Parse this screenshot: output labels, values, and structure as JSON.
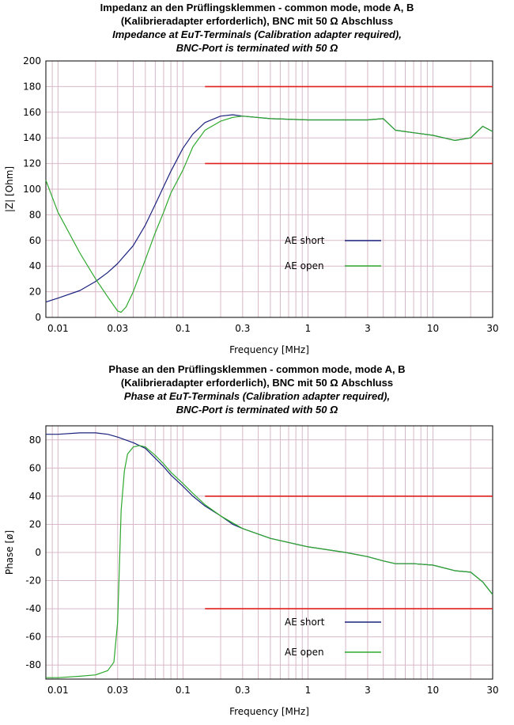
{
  "chart_data": [
    {
      "type": "line",
      "title": "Impedanz an den Prüflingsklemmen - common mode, mode A, B",
      "subtitle": "(Kalibrieradapter erforderlich), BNC mit 50 Ω Abschluss",
      "title_en": "Impedance at EuT-Terminals (Calibration adapter required),",
      "subtitle_en": "BNC-Port is terminated with 50 Ω",
      "xlabel": "Frequency [MHz]",
      "ylabel": "|Z| [Ohm]",
      "xscale": "log",
      "xlim": [
        0.008,
        30
      ],
      "ylim": [
        0,
        200
      ],
      "xticks": [
        0.01,
        0.03,
        0.1,
        0.3,
        1,
        3,
        10,
        30
      ],
      "xtick_labels": [
        "0.01",
        "0.03",
        "0.1",
        "0.3",
        "1",
        "3",
        "10",
        "30"
      ],
      "yticks": [
        0,
        20,
        40,
        60,
        80,
        100,
        120,
        140,
        160,
        180,
        200
      ],
      "ytick_labels": [
        "0",
        "20",
        "40",
        "60",
        "80",
        "100",
        "120",
        "140",
        "160",
        "180",
        "200"
      ],
      "grid": true,
      "legend_position": "center-right",
      "limit_lines": [
        {
          "color": "#e0201e",
          "x": [
            0.15,
            30
          ],
          "y": [
            180,
            180
          ]
        },
        {
          "color": "#e0201e",
          "x": [
            0.15,
            30
          ],
          "y": [
            120,
            120
          ]
        }
      ],
      "series": [
        {
          "name": "AE short",
          "color": "#1a237e",
          "x": [
            0.008,
            0.01,
            0.015,
            0.02,
            0.025,
            0.03,
            0.04,
            0.05,
            0.06,
            0.07,
            0.08,
            0.1,
            0.12,
            0.15,
            0.2,
            0.25,
            0.3,
            0.5,
            1,
            2,
            3,
            4,
            5,
            7,
            10,
            15,
            20,
            25,
            30
          ],
          "y": [
            12,
            15,
            21,
            28,
            35,
            42,
            56,
            72,
            88,
            102,
            114,
            132,
            143,
            152,
            157,
            158,
            157,
            155,
            154,
            154,
            154,
            155,
            146,
            144,
            142,
            138,
            140,
            149,
            145
          ]
        },
        {
          "name": "AE open",
          "color": "#2ea82e",
          "x": [
            0.008,
            0.01,
            0.015,
            0.02,
            0.025,
            0.03,
            0.032,
            0.035,
            0.04,
            0.05,
            0.06,
            0.07,
            0.08,
            0.1,
            0.12,
            0.15,
            0.2,
            0.25,
            0.3,
            0.5,
            1,
            2,
            3,
            4,
            5,
            7,
            10,
            15,
            20,
            25,
            30
          ],
          "y": [
            107,
            82,
            50,
            30,
            16,
            5,
            4,
            8,
            20,
            45,
            66,
            82,
            97,
            115,
            133,
            146,
            153,
            156,
            157,
            155,
            154,
            154,
            154,
            155,
            146,
            144,
            142,
            138,
            140,
            149,
            145
          ]
        }
      ]
    },
    {
      "type": "line",
      "title": "Phase an den Prüflingsklemmen - common mode, mode A, B",
      "subtitle": "(Kalibrieradapter erforderlich), BNC mit 50 Ω Abschluss",
      "title_en": "Phase at EuT-Terminals (Calibration adapter required),",
      "subtitle_en": "BNC-Port is terminated with 50 Ω",
      "xlabel": "Frequency [MHz]",
      "ylabel": "Phase [ø]",
      "xscale": "log",
      "xlim": [
        0.008,
        30
      ],
      "ylim": [
        -90,
        90
      ],
      "xticks": [
        0.01,
        0.03,
        0.1,
        0.3,
        1,
        3,
        10,
        30
      ],
      "xtick_labels": [
        "0.01",
        "0.03",
        "0.1",
        "0.3",
        "1",
        "3",
        "10",
        "30"
      ],
      "yticks": [
        -80,
        -60,
        -40,
        -20,
        0,
        20,
        40,
        60,
        80
      ],
      "ytick_labels": [
        "-80",
        "-60",
        "-40",
        "-20",
        "0",
        "20",
        "40",
        "60",
        "80"
      ],
      "grid": true,
      "legend_position": "bottom-right",
      "limit_lines": [
        {
          "color": "#e0201e",
          "x": [
            0.15,
            30
          ],
          "y": [
            40,
            40
          ]
        },
        {
          "color": "#e0201e",
          "x": [
            0.15,
            30
          ],
          "y": [
            -40,
            -40
          ]
        }
      ],
      "series": [
        {
          "name": "AE short",
          "color": "#1a237e",
          "x": [
            0.008,
            0.01,
            0.015,
            0.02,
            0.025,
            0.03,
            0.04,
            0.05,
            0.06,
            0.07,
            0.08,
            0.1,
            0.12,
            0.15,
            0.2,
            0.25,
            0.3,
            0.5,
            1,
            2,
            3,
            4,
            5,
            7,
            10,
            15,
            20,
            25,
            30
          ],
          "y": [
            84,
            84,
            85,
            85,
            84,
            82,
            78,
            74,
            67,
            61,
            55,
            47,
            40,
            33,
            26,
            20,
            17,
            10,
            4,
            0,
            -3,
            -6,
            -8,
            -8,
            -9,
            -13,
            -14,
            -21,
            -30
          ]
        },
        {
          "name": "AE open",
          "color": "#2ea82e",
          "x": [
            0.008,
            0.01,
            0.015,
            0.02,
            0.025,
            0.028,
            0.03,
            0.031,
            0.032,
            0.034,
            0.036,
            0.04,
            0.045,
            0.05,
            0.06,
            0.07,
            0.08,
            0.1,
            0.12,
            0.15,
            0.2,
            0.25,
            0.3,
            0.5,
            1,
            2,
            3,
            4,
            5,
            7,
            10,
            15,
            20,
            25,
            30
          ],
          "y": [
            -89,
            -89,
            -88,
            -87,
            -84,
            -78,
            -50,
            -10,
            30,
            58,
            70,
            75,
            76,
            75,
            69,
            63,
            57,
            49,
            42,
            34,
            26,
            21,
            17,
            10,
            4,
            0,
            -3,
            -6,
            -8,
            -8,
            -9,
            -13,
            -14,
            -21,
            -30
          ]
        }
      ]
    }
  ]
}
